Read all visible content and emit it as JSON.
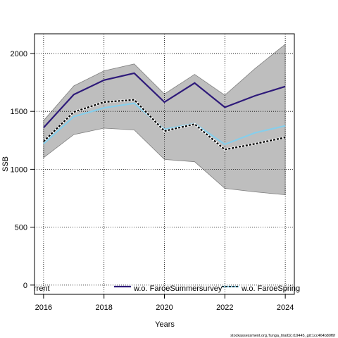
{
  "chart_data": {
    "type": "line",
    "xlabel": "Years",
    "ylabel": "SSB",
    "xlim": [
      2015.7,
      2024.3
    ],
    "ylim": [
      -80,
      2170
    ],
    "x_ticks": [
      2016,
      2018,
      2020,
      2022,
      2024
    ],
    "y_ticks": [
      0,
      500,
      1000,
      1500,
      2000
    ],
    "grid": true,
    "x": [
      2016,
      2017,
      2018,
      2019,
      2020,
      2021,
      2022,
      2023,
      2024
    ],
    "band": {
      "upper": [
        1420,
        1720,
        1850,
        1910,
        1650,
        1820,
        1640,
        1870,
        2080
      ],
      "lower": [
        1100,
        1300,
        1355,
        1340,
        1085,
        1065,
        835,
        805,
        780
      ],
      "color": "#bebebe"
    },
    "series": [
      {
        "name": "rrent",
        "values": [
          1240,
          1495,
          1580,
          1600,
          1330,
          1390,
          1170,
          1220,
          1275
        ],
        "color": "#000000",
        "style": "dashed-on-white"
      },
      {
        "name": "w.o. FaroeSummersurvey",
        "values": [
          1360,
          1645,
          1770,
          1830,
          1580,
          1745,
          1535,
          1635,
          1715
        ],
        "color": "#2e1a7a",
        "style": "solid"
      },
      {
        "name": "w.o. FaroeSpring",
        "values": [
          1220,
          1455,
          1530,
          1570,
          1345,
          1395,
          1215,
          1315,
          1375
        ],
        "color": "#87ceeb",
        "style": "solid"
      }
    ],
    "legend_position": "bottom"
  },
  "footer": "stockassessment.org,Tunga_trial02,r19445_git:1cc464b80f6f"
}
